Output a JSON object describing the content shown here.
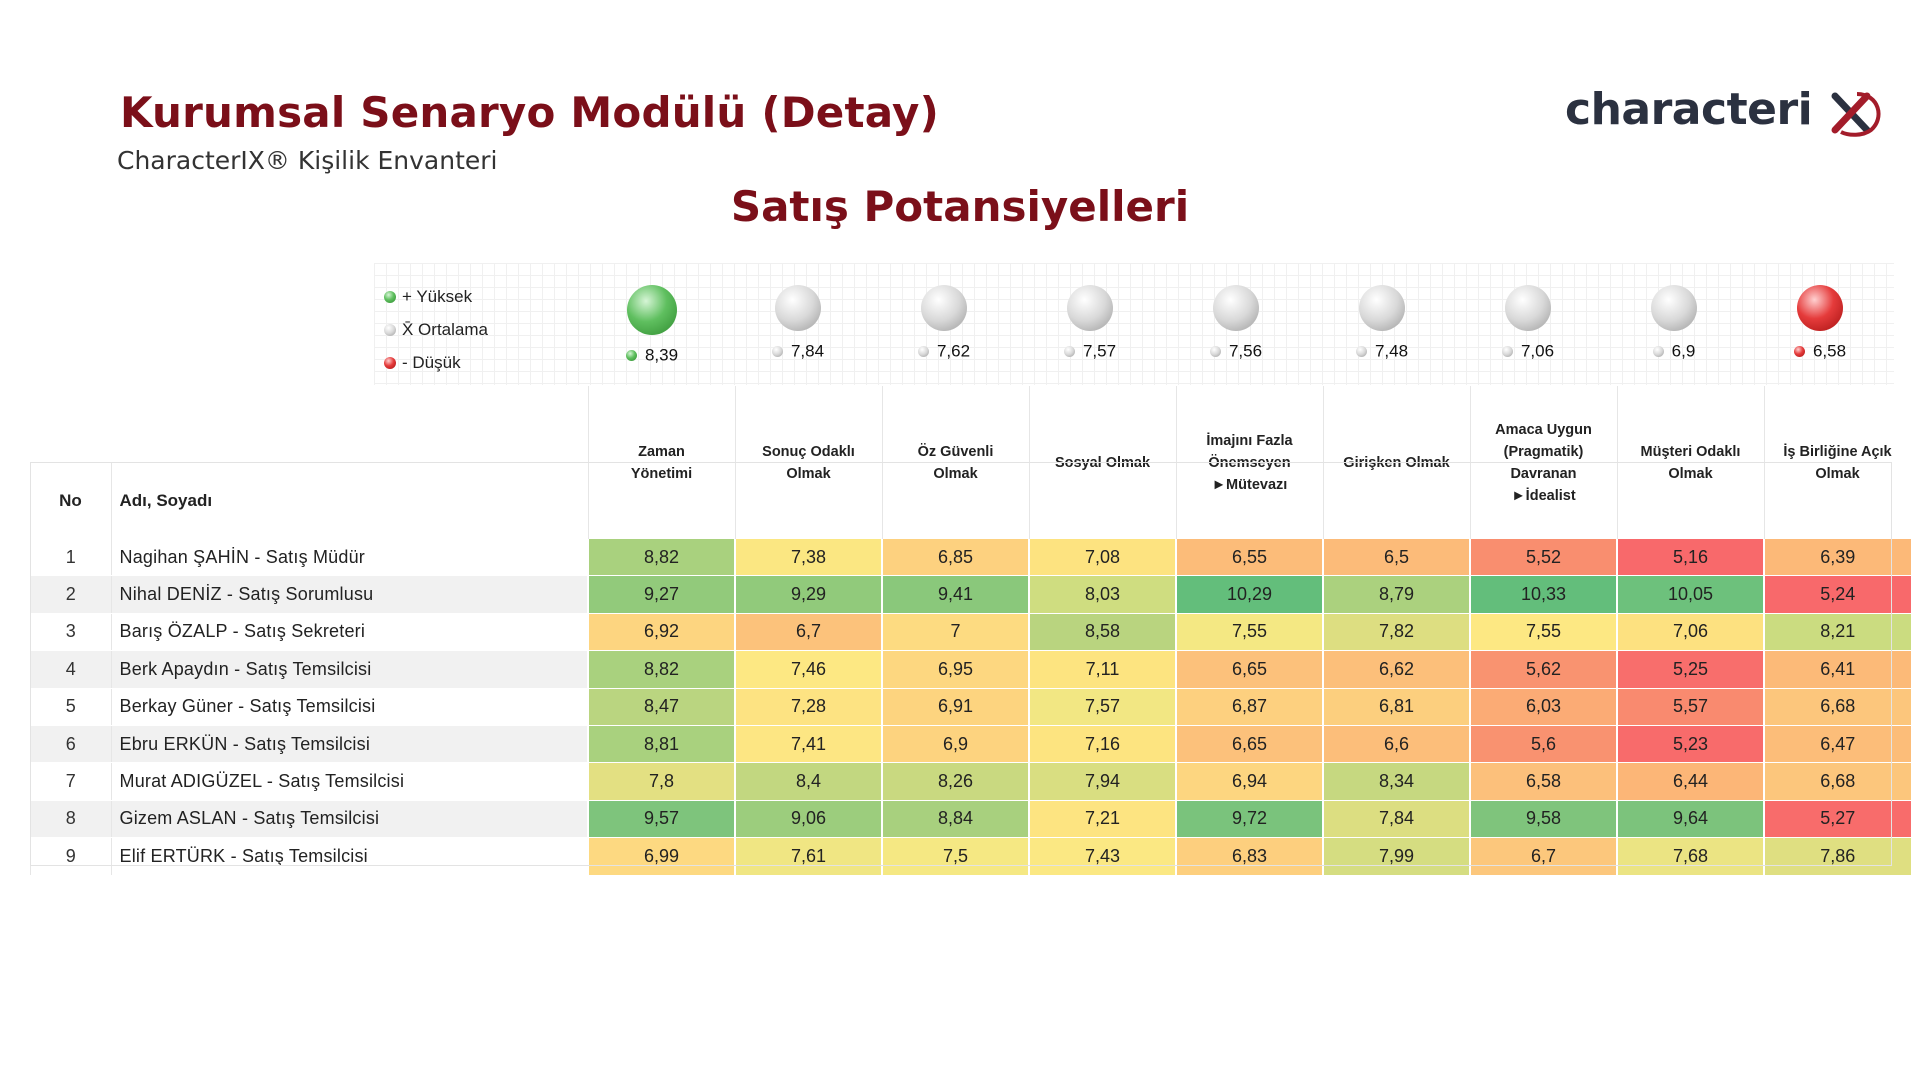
{
  "header": {
    "title": "Kurumsal Senaryo Modülü (Detay)",
    "subtitle": "CharacterIX® Kişilik Envanteri",
    "section_title": "Satış Potansiyelleri",
    "logo_text": "characteri"
  },
  "legend": [
    {
      "label": "+ Yüksek",
      "color": "#4caf50"
    },
    {
      "label": "X̄ Ortalama",
      "color": "#d0d0d0"
    },
    {
      "label": "- Düşük",
      "color": "#e53935"
    }
  ],
  "averages": [
    {
      "value": "8,39",
      "level": "high"
    },
    {
      "value": "7,84",
      "level": "avg"
    },
    {
      "value": "7,62",
      "level": "avg"
    },
    {
      "value": "7,57",
      "level": "avg"
    },
    {
      "value": "7,56",
      "level": "avg"
    },
    {
      "value": "7,48",
      "level": "avg"
    },
    {
      "value": "7,06",
      "level": "avg"
    },
    {
      "value": "6,9",
      "level": "avg"
    },
    {
      "value": "6,58",
      "level": "low"
    }
  ],
  "table": {
    "col_no": "No",
    "col_name": "Adı, Soyadı",
    "columns": [
      [
        "Zaman",
        "Yönetimi"
      ],
      [
        "Sonuç Odaklı",
        "Olmak"
      ],
      [
        "Öz Güvenli",
        "Olmak"
      ],
      [
        "Sosyal Olmak"
      ],
      [
        "İmajını Fazla",
        "Önemseyen",
        "►Mütevazı"
      ],
      [
        "Girişken Olmak"
      ],
      [
        "Amaca Uygun",
        "(Pragmatik)",
        "Davranan",
        "►İdealist"
      ],
      [
        "Müşteri Odaklı",
        "Olmak"
      ],
      [
        "İş Birliğine Açık",
        "Olmak"
      ]
    ],
    "rows": [
      {
        "no": "1",
        "name": "Nagihan ŞAHİN - Satış Müdür",
        "scores": [
          "8,82",
          "7,38",
          "6,85",
          "7,08",
          "6,55",
          "6,5",
          "5,52",
          "5,16",
          "6,39"
        ],
        "colors": [
          "#a9d17e",
          "#fbe782",
          "#fdd17f",
          "#fde380",
          "#fcbc79",
          "#fcbb79",
          "#f98e6f",
          "#f8696b",
          "#fcb978"
        ]
      },
      {
        "no": "2",
        "name": "Nihal DENİZ - Satış Sorumlusu",
        "scores": [
          "9,27",
          "9,29",
          "9,41",
          "8,03",
          "10,29",
          "8,79",
          "10,33",
          "10,05",
          "5,24"
        ],
        "colors": [
          "#92ca7b",
          "#91ca7b",
          "#8ac87b",
          "#cfdd80",
          "#63be7b",
          "#abd17e",
          "#63be7b",
          "#6dc17c",
          "#f8696b"
        ]
      },
      {
        "no": "3",
        "name": "Barış ÖZALP - Satış Sekreteri",
        "scores": [
          "6,92",
          "6,7",
          "7",
          "8,58",
          "7,55",
          "7,82",
          "7,55",
          "7,06",
          "8,21"
        ],
        "colors": [
          "#fdd580",
          "#fcc27b",
          "#fddb81",
          "#b9d47f",
          "#f4e883",
          "#ddde81",
          "#fde883",
          "#fde180",
          "#cbdc80"
        ]
      },
      {
        "no": "4",
        "name": "Berk Apaydın - Satış Temsilcisi",
        "scores": [
          "8,82",
          "7,46",
          "6,95",
          "7,11",
          "6,65",
          "6,62",
          "5,62",
          "5,25",
          "6,41"
        ],
        "colors": [
          "#a9d17e",
          "#fde883",
          "#fdd780",
          "#fde480",
          "#fcc17b",
          "#fcbf7a",
          "#f99370",
          "#f86e6c",
          "#fcba78"
        ]
      },
      {
        "no": "5",
        "name": "Berkay Güner - Satış Temsilcisi",
        "scores": [
          "8,47",
          "7,28",
          "6,91",
          "7,57",
          "6,87",
          "6,81",
          "6,03",
          "5,57",
          "6,68"
        ],
        "colors": [
          "#bad580",
          "#fde382",
          "#fdd47f",
          "#f2e783",
          "#fdd07f",
          "#fccf7e",
          "#fbab75",
          "#f98a6f",
          "#fcc67c"
        ]
      },
      {
        "no": "6",
        "name": "Ebru ERKÜN - Satış Temsilcisi",
        "scores": [
          "8,81",
          "7,41",
          "6,9",
          "7,16",
          "6,65",
          "6,6",
          "5,6",
          "5,23",
          "6,47"
        ],
        "colors": [
          "#a9d17e",
          "#fde683",
          "#fdd37f",
          "#fde480",
          "#fcc17b",
          "#fcbe7a",
          "#f99270",
          "#f86b6b",
          "#fcbd79"
        ]
      },
      {
        "no": "7",
        "name": "Murat ADIGÜZEL - Satış Temsilcisi",
        "scores": [
          "7,8",
          "8,4",
          "8,26",
          "7,94",
          "6,94",
          "8,34",
          "6,58",
          "6,44",
          "6,68"
        ],
        "colors": [
          "#e3e082",
          "#c2d780",
          "#c9d980",
          "#d9de81",
          "#fdd680",
          "#c6d880",
          "#fcc07b",
          "#fcb677",
          "#fcc67c"
        ]
      },
      {
        "no": "8",
        "name": "Gizem ASLAN - Satış Temsilcisi",
        "scores": [
          "9,57",
          "9,06",
          "8,84",
          "7,21",
          "9,72",
          "7,84",
          "9,58",
          "9,64",
          "5,27"
        ],
        "colors": [
          "#7ec47c",
          "#9ccd7d",
          "#a8d07e",
          "#fde481",
          "#7ac37c",
          "#dcde81",
          "#7fc47c",
          "#7cc37c",
          "#f86c6b"
        ]
      },
      {
        "no": "9",
        "name": "Elif ERTÜRK - Satış Temsilcisi",
        "scores": [
          "6,99",
          "7,61",
          "7,5",
          "7,43",
          "6,83",
          "7,99",
          "6,7",
          "7,68",
          "7,86"
        ],
        "colors": [
          "#fdd981",
          "#f0e683",
          "#f5e883",
          "#fbe883",
          "#fdcf7e",
          "#d5dd81",
          "#fcc77c",
          "#ebe483",
          "#dfdf81"
        ]
      }
    ]
  }
}
